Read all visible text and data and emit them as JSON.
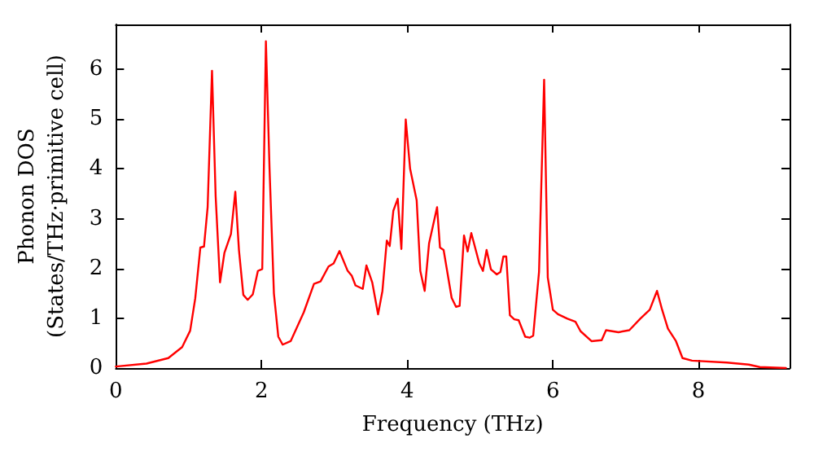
{
  "chart_data": {
    "type": "line",
    "xlabel": "Frequency (THz)",
    "ylabel": "Phonon DOS\n(States/THz·primitive cell)",
    "xlim": [
      0,
      9.25
    ],
    "xticks": [
      0,
      2,
      4,
      6,
      8
    ],
    "ylim": [
      0,
      6.9
    ],
    "yticks": [
      0,
      1,
      2,
      3,
      4,
      5,
      6
    ],
    "grid": false,
    "marker": "none",
    "line_style": "solid",
    "series": [
      {
        "color": "#ff0000",
        "x": [
          0,
          0.42,
          0.72,
          0.91,
          1.02,
          1.09,
          1.16,
          1.21,
          1.26,
          1.32,
          1.37,
          1.43,
          1.49,
          1.58,
          1.64,
          1.69,
          1.75,
          1.81,
          1.88,
          1.95,
          2.01,
          2.06,
          2.11,
          2.17,
          2.23,
          2.29,
          2.4,
          2.58,
          2.72,
          2.81,
          2.92,
          2.99,
          3.07,
          3.18,
          3.24,
          3.29,
          3.39,
          3.44,
          3.52,
          3.6,
          3.66,
          3.72,
          3.76,
          3.81,
          3.87,
          3.92,
          3.98,
          4.04,
          4.13,
          4.18,
          4.24,
          4.3,
          4.41,
          4.45,
          4.5,
          4.61,
          4.67,
          4.72,
          4.78,
          4.83,
          4.88,
          4.99,
          5.04,
          5.09,
          5.15,
          5.23,
          5.28,
          5.32,
          5.36,
          5.41,
          5.47,
          5.53,
          5.62,
          5.68,
          5.73,
          5.81,
          5.88,
          5.93,
          6.0,
          6.07,
          6.2,
          6.31,
          6.38,
          6.53,
          6.67,
          6.73,
          6.9,
          7.05,
          7.2,
          7.33,
          7.43,
          7.5,
          7.58,
          7.69,
          7.78,
          7.91,
          8.39,
          8.69,
          8.84,
          9.2
        ],
        "values": [
          0.03,
          0.09,
          0.2,
          0.42,
          0.75,
          1.4,
          2.42,
          2.44,
          3.23,
          5.97,
          3.45,
          1.72,
          2.31,
          2.69,
          3.54,
          2.37,
          1.47,
          1.37,
          1.48,
          1.95,
          1.99,
          6.56,
          4.0,
          1.5,
          0.63,
          0.47,
          0.54,
          1.12,
          1.69,
          1.74,
          2.04,
          2.1,
          2.35,
          1.96,
          1.85,
          1.66,
          1.59,
          2.06,
          1.72,
          1.08,
          1.55,
          2.56,
          2.45,
          3.16,
          3.4,
          2.39,
          4.99,
          4.0,
          3.37,
          1.95,
          1.55,
          2.5,
          3.23,
          2.42,
          2.37,
          1.41,
          1.23,
          1.25,
          2.66,
          2.34,
          2.71,
          2.1,
          1.95,
          2.37,
          1.98,
          1.88,
          1.93,
          2.24,
          2.24,
          1.06,
          0.98,
          0.96,
          0.63,
          0.61,
          0.65,
          1.93,
          5.79,
          1.82,
          1.17,
          1.08,
          0.99,
          0.93,
          0.74,
          0.54,
          0.56,
          0.76,
          0.72,
          0.76,
          0.99,
          1.17,
          1.55,
          1.17,
          0.79,
          0.54,
          0.2,
          0.15,
          0.11,
          0.07,
          0.02,
          0
        ]
      }
    ]
  }
}
